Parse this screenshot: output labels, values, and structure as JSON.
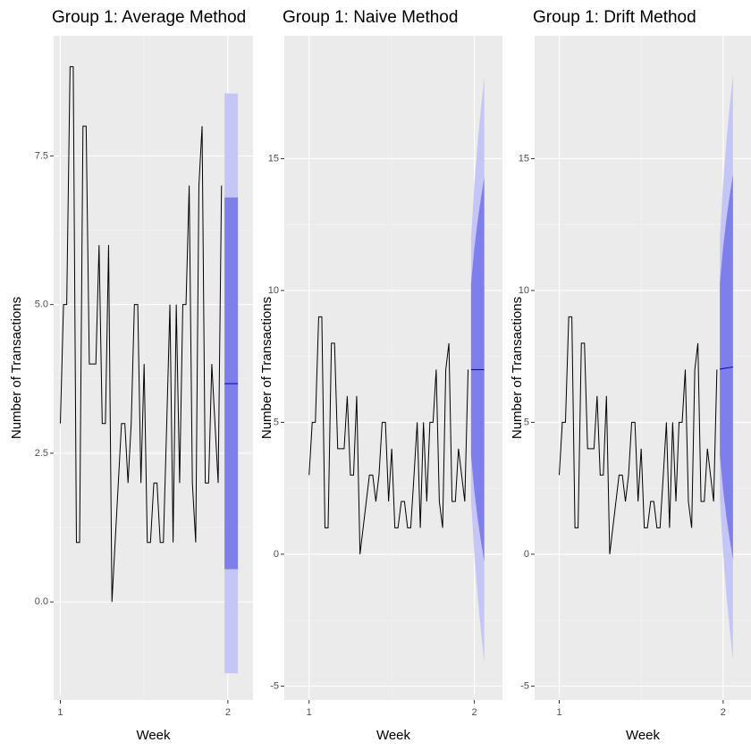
{
  "chart_data": [
    {
      "type": "line",
      "title": "Group 1: Average Method",
      "x_label": "Week",
      "y_label": "Number of Transactions",
      "x": [
        1,
        1.019,
        1.038,
        1.058,
        1.077,
        1.096,
        1.115,
        1.135,
        1.154,
        1.173,
        1.192,
        1.212,
        1.231,
        1.25,
        1.269,
        1.288,
        1.308,
        1.327,
        1.346,
        1.365,
        1.385,
        1.404,
        1.423,
        1.442,
        1.462,
        1.481,
        1.5,
        1.519,
        1.538,
        1.558,
        1.577,
        1.596,
        1.615,
        1.635,
        1.654,
        1.673,
        1.692,
        1.712,
        1.731,
        1.75,
        1.769,
        1.788,
        1.808,
        1.827,
        1.846,
        1.865,
        1.885,
        1.904,
        1.923,
        1.942,
        1.962
      ],
      "values": [
        3,
        5,
        5,
        9,
        9,
        1,
        1,
        8,
        8,
        4,
        4,
        4,
        6,
        3,
        3,
        6,
        0,
        1,
        2,
        3,
        3,
        2,
        3,
        5,
        5,
        2,
        4,
        1,
        1,
        2,
        2,
        1,
        1,
        3,
        5,
        1,
        5,
        2,
        5,
        5,
        7,
        2,
        1,
        7,
        8,
        2,
        2,
        4,
        3,
        2,
        7
      ],
      "color": "#000000",
      "forecast": {
        "x": [
          1.98,
          2.0,
          2.02,
          2.04,
          2.06
        ],
        "mean": [
          3.67,
          3.67,
          3.67,
          3.67,
          3.67
        ],
        "lo80": [
          0.55,
          0.55,
          0.55,
          0.55,
          0.55
        ],
        "hi80": [
          6.8,
          6.8,
          6.8,
          6.8,
          6.8
        ],
        "lo95": [
          -1.2,
          -1.2,
          -1.2,
          -1.2,
          -1.2
        ],
        "hi95": [
          8.55,
          8.55,
          8.55,
          8.55,
          8.55
        ],
        "mean_color": "#0000cc",
        "color80": "#7f7fec",
        "color95": "#c6c6f6"
      },
      "xlim": [
        0.96,
        2.15
      ],
      "ylim": [
        -1.65,
        9.52
      ],
      "xticks": [
        1,
        2
      ],
      "yticks": [
        {
          "value": 0,
          "label": "0.0"
        },
        2.5,
        {
          "value": 5,
          "label": "5.0"
        },
        7.5
      ],
      "grid": true
    },
    {
      "type": "line",
      "title": "Group 1: Naive Method",
      "x_label": "Week",
      "y_label": "Number of Transactions",
      "x": [
        1,
        1.019,
        1.038,
        1.058,
        1.077,
        1.096,
        1.115,
        1.135,
        1.154,
        1.173,
        1.192,
        1.212,
        1.231,
        1.25,
        1.269,
        1.288,
        1.308,
        1.327,
        1.346,
        1.365,
        1.385,
        1.404,
        1.423,
        1.442,
        1.462,
        1.481,
        1.5,
        1.519,
        1.538,
        1.558,
        1.577,
        1.596,
        1.615,
        1.635,
        1.654,
        1.673,
        1.692,
        1.712,
        1.731,
        1.75,
        1.769,
        1.788,
        1.808,
        1.827,
        1.846,
        1.865,
        1.885,
        1.904,
        1.923,
        1.942,
        1.962
      ],
      "values": [
        3,
        5,
        5,
        9,
        9,
        1,
        1,
        8,
        8,
        4,
        4,
        4,
        6,
        3,
        3,
        6,
        0,
        1,
        2,
        3,
        3,
        2,
        3,
        5,
        5,
        2,
        4,
        1,
        1,
        2,
        2,
        1,
        1,
        3,
        5,
        1,
        5,
        2,
        5,
        5,
        7,
        2,
        1,
        7,
        8,
        2,
        2,
        4,
        3,
        2,
        7
      ],
      "color": "#000000",
      "forecast": {
        "x": [
          1.98,
          2.0,
          2.02,
          2.04,
          2.06
        ],
        "mean": [
          7,
          7,
          7,
          7,
          7
        ],
        "lo80": [
          3.74,
          2.39,
          1.35,
          0.48,
          -0.3
        ],
        "hi80": [
          10.26,
          11.61,
          12.65,
          13.52,
          14.3
        ],
        "lo95": [
          2.04,
          -0.02,
          -1.6,
          -2.93,
          -4.1
        ],
        "hi95": [
          11.96,
          14.02,
          15.6,
          16.93,
          18.1
        ],
        "mean_color": "#0000cc",
        "color80": "#7f7fec",
        "color95": "#c6c6f6"
      },
      "xlim": [
        0.85,
        2.17
      ],
      "ylim": [
        -5.53,
        19.66
      ],
      "xticks": [
        1,
        2
      ],
      "yticks": [
        -5,
        0,
        5,
        10,
        15
      ],
      "grid": true
    },
    {
      "type": "line",
      "title": "Group 1: Drift Method",
      "x_label": "Week",
      "y_label": "Number of Transactions",
      "x": [
        1,
        1.019,
        1.038,
        1.058,
        1.077,
        1.096,
        1.115,
        1.135,
        1.154,
        1.173,
        1.192,
        1.212,
        1.231,
        1.25,
        1.269,
        1.288,
        1.308,
        1.327,
        1.346,
        1.365,
        1.385,
        1.404,
        1.423,
        1.442,
        1.462,
        1.481,
        1.5,
        1.519,
        1.538,
        1.558,
        1.577,
        1.596,
        1.615,
        1.635,
        1.654,
        1.673,
        1.692,
        1.712,
        1.731,
        1.75,
        1.769,
        1.788,
        1.808,
        1.827,
        1.846,
        1.865,
        1.885,
        1.904,
        1.923,
        1.942,
        1.962
      ],
      "values": [
        3,
        5,
        5,
        9,
        9,
        1,
        1,
        8,
        8,
        4,
        4,
        4,
        6,
        3,
        3,
        6,
        0,
        1,
        2,
        3,
        3,
        2,
        3,
        5,
        5,
        2,
        4,
        1,
        1,
        2,
        2,
        1,
        1,
        3,
        5,
        1,
        5,
        2,
        5,
        5,
        7,
        2,
        1,
        7,
        8,
        2,
        2,
        4,
        3,
        2,
        7
      ],
      "color": "#000000",
      "forecast": {
        "x": [
          1.98,
          2.0,
          2.02,
          2.04,
          2.06
        ],
        "mean": [
          7.02,
          7.04,
          7.06,
          7.08,
          7.1
        ],
        "lo80": [
          3.76,
          2.43,
          1.41,
          0.56,
          -0.2
        ],
        "hi80": [
          10.28,
          11.65,
          12.71,
          13.6,
          14.4
        ],
        "lo95": [
          2.06,
          0.02,
          -1.54,
          -2.85,
          -4.0
        ],
        "hi95": [
          11.98,
          14.06,
          15.66,
          17.01,
          18.2
        ],
        "mean_color": "#0000cc",
        "color80": "#7f7fec",
        "color95": "#c6c6f6"
      },
      "xlim": [
        0.85,
        2.17
      ],
      "ylim": [
        -5.53,
        19.66
      ],
      "xticks": [
        1,
        2
      ],
      "yticks": [
        -5,
        0,
        5,
        10,
        15
      ],
      "grid": true
    }
  ]
}
